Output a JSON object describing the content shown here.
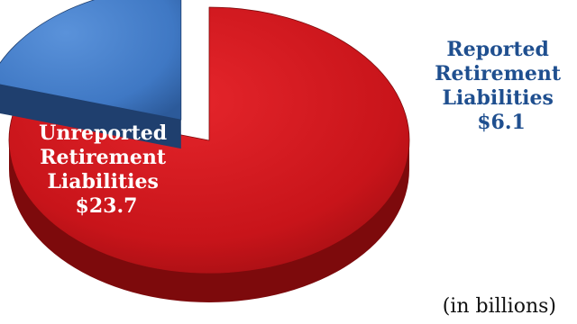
{
  "chart_data": {
    "type": "pie",
    "style": "3d-exploded",
    "slices": [
      {
        "label_lines": [
          "Unreported",
          "Retirement",
          "Liabilities",
          "$23.7"
        ],
        "value": 23.7,
        "color": "#c8141a",
        "side_color": "#7d0a0c",
        "label_color": "#ffffff",
        "exploded": false
      },
      {
        "label_lines": [
          "Reported",
          "Retirement",
          "Liabilities",
          "$6.1"
        ],
        "value": 6.1,
        "color": "#3f78c4",
        "side_color": "#1f3f6e",
        "label_color": "#1f4f8f",
        "exploded": true
      }
    ],
    "unit_note": "(in billions)",
    "legend": "none"
  }
}
